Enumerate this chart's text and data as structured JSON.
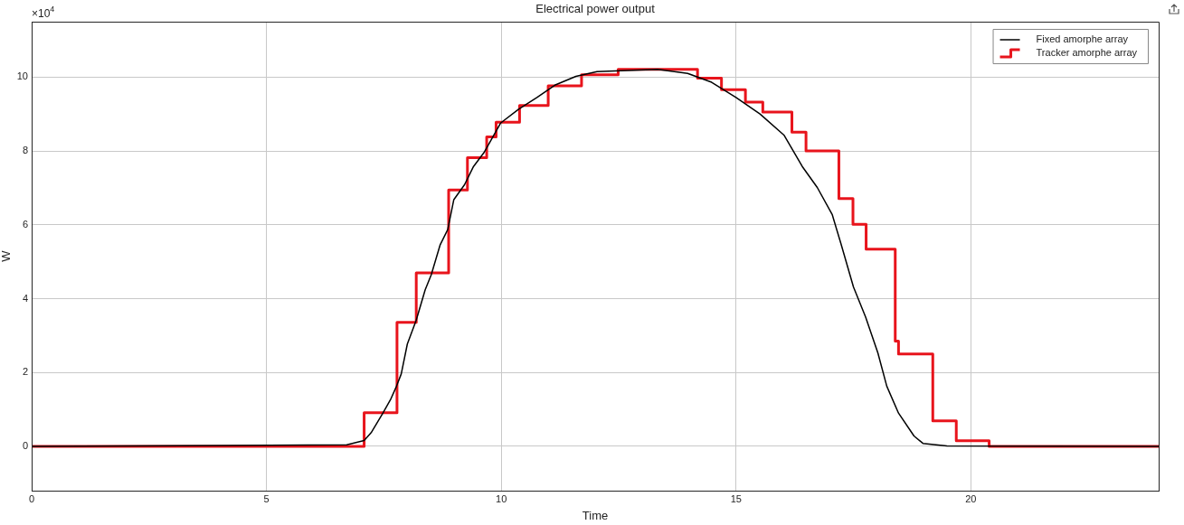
{
  "chart_data": {
    "type": "step",
    "title": "Electrical power output",
    "xlabel": "Time",
    "ylabel": "W",
    "annotations": [
      "×10$^{4}$"
    ],
    "xlim": [
      0,
      24
    ],
    "xticks": [
      0,
      5,
      10,
      15,
      20
    ],
    "ylim": [
      -1.2,
      11.5
    ],
    "yticks": [
      0,
      2,
      4,
      6,
      8,
      10
    ],
    "grid": true,
    "legend": "top right",
    "marker": "none",
    "series": [
      {
        "name": "Fixed amorphe array",
        "color": "#000000",
        "type": "line",
        "x": [
          0,
          6.71,
          7.08,
          7.23,
          7.48,
          7.64,
          7.77,
          7.87,
          8.0,
          8.19,
          8.38,
          8.51,
          8.7,
          8.86,
          8.99,
          9.22,
          9.41,
          9.63,
          9.79,
          9.99,
          10.37,
          10.76,
          11.14,
          11.59,
          12.04,
          13.33,
          13.97,
          14.48,
          15.0,
          15.51,
          16.02,
          16.41,
          16.73,
          17.05,
          17.24,
          17.5,
          17.76,
          18.02,
          18.21,
          18.46,
          18.79,
          18.98,
          19.49,
          24
        ],
        "values": [
          0,
          0.04,
          0.16,
          0.37,
          0.9,
          1.26,
          1.63,
          1.96,
          2.77,
          3.42,
          4.24,
          4.65,
          5.46,
          5.87,
          6.68,
          7.09,
          7.58,
          7.95,
          8.31,
          8.76,
          9.13,
          9.45,
          9.78,
          10.02,
          10.15,
          10.21,
          10.1,
          9.86,
          9.45,
          9.0,
          8.43,
          7.58,
          7.01,
          6.27,
          5.46,
          4.32,
          3.5,
          2.53,
          1.63,
          0.9,
          0.28,
          0.08,
          0.01,
          0
        ]
      },
      {
        "name": "Tracker amorphe array",
        "color": "#e8141c",
        "x": [
          0,
          7.08,
          7.78,
          8.19,
          8.88,
          9.28,
          9.69,
          9.89,
          10.39,
          11.0,
          11.71,
          12.49,
          14.18,
          14.69,
          15.2,
          15.57,
          16.19,
          16.49,
          17.19,
          17.49,
          17.77,
          18.39,
          18.46,
          19.19,
          19.69,
          20.39,
          24
        ],
        "values": [
          0,
          0.91,
          3.36,
          4.7,
          6.94,
          7.82,
          8.38,
          8.78,
          9.23,
          9.76,
          10.06,
          10.21,
          9.97,
          9.66,
          9.32,
          9.05,
          8.51,
          8.0,
          6.71,
          6.01,
          5.34,
          2.85,
          2.5,
          0.69,
          0.15,
          0,
          0
        ]
      }
    ]
  }
}
